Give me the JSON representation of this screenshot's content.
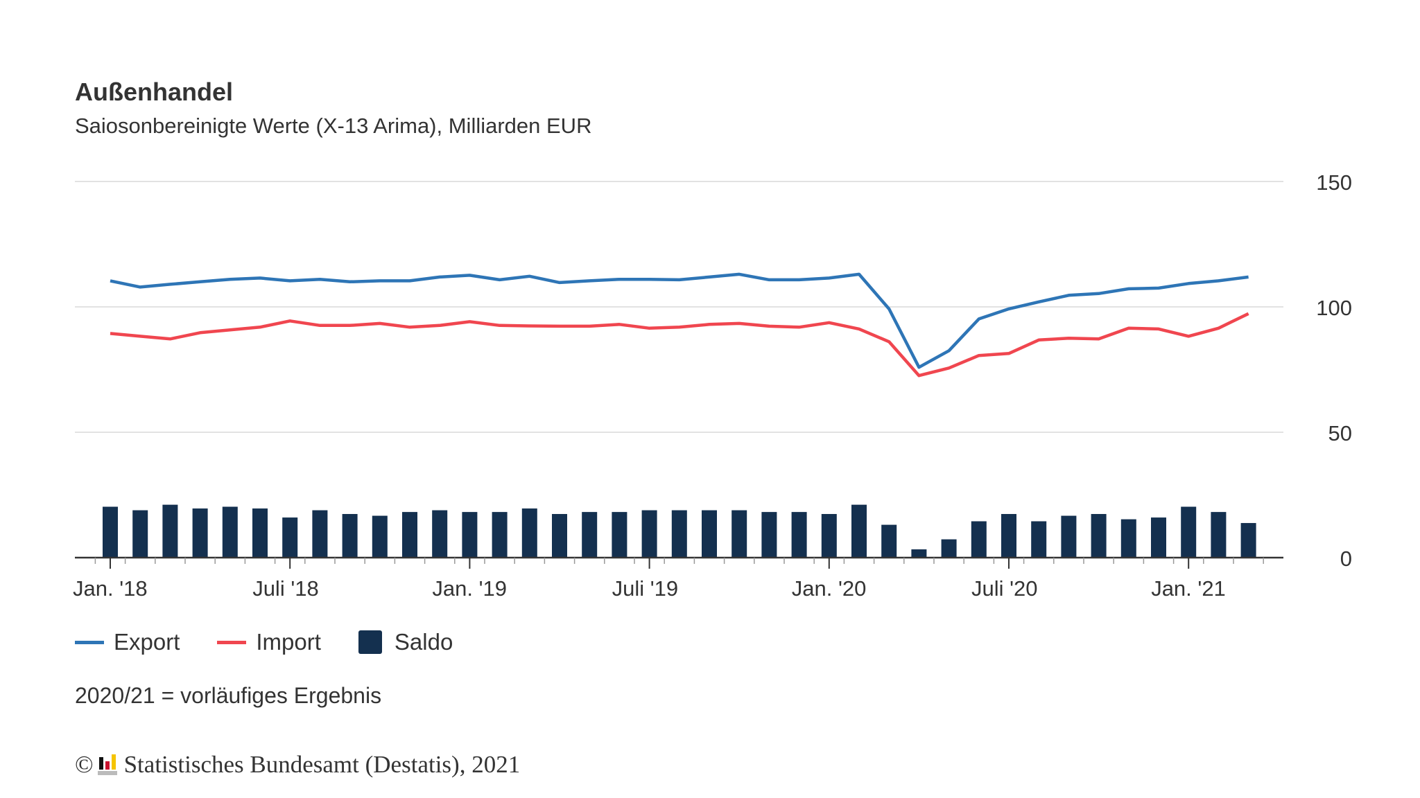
{
  "chart_data": {
    "type": "line+bar",
    "title": "Außenhandel",
    "subtitle": "Saiosonbereinigte Werte (X-13 Arima), Milliarden EUR",
    "ylim": [
      0,
      150
    ],
    "yticks": [
      "150",
      "100",
      "50",
      "0"
    ],
    "ytick_values": [
      150,
      100,
      50,
      0
    ],
    "grid": true,
    "legend_position": "bottom-left",
    "x_start": "Jan. 2018",
    "x_end": "Mär. 2021",
    "xtick_labels": [
      {
        "label": "Jan. '18",
        "month_index": 0
      },
      {
        "label": "Juli '18",
        "month_index": 6
      },
      {
        "label": "Jan. '19",
        "month_index": 12
      },
      {
        "label": "Juli '19",
        "month_index": 18
      },
      {
        "label": "Jan. '20",
        "month_index": 24
      },
      {
        "label": "Juli '20",
        "month_index": 30
      },
      {
        "label": "Jan. '21",
        "month_index": 36
      }
    ],
    "series": [
      {
        "name": "Export",
        "type": "line",
        "color": "#2e75b6",
        "values": [
          110.4,
          107.9,
          109,
          110,
          111,
          111.5,
          110.4,
          111,
          110,
          110.4,
          110.4,
          111.9,
          112.6,
          110.8,
          112.2,
          109.7,
          110.4,
          111,
          111,
          110.8,
          111.9,
          113,
          110.8,
          110.8,
          111.5,
          113,
          99.2,
          75.9,
          82.5,
          95.2,
          99.2,
          102,
          104.6,
          105.3,
          107.2,
          107.5,
          109.3,
          110.4,
          111.9
        ]
      },
      {
        "name": "Import",
        "type": "line",
        "color": "#f0464f",
        "values": [
          89.4,
          88.3,
          87.2,
          89.7,
          90.8,
          91.9,
          94.4,
          92.6,
          92.6,
          93.4,
          91.9,
          92.6,
          94.1,
          92.6,
          92.4,
          92.3,
          92.3,
          93,
          91.5,
          91.9,
          93,
          93.4,
          92.3,
          91.9,
          93.7,
          91.2,
          86.1,
          72.6,
          75.6,
          80.6,
          81.4,
          86.8,
          87.5,
          87.2,
          91.5,
          91.2,
          88.3,
          91.5,
          97.3
        ]
      },
      {
        "name": "Saldo",
        "type": "bar",
        "color": "#14304f",
        "values": [
          20.3,
          18.9,
          21.1,
          19.6,
          20.3,
          19.6,
          16,
          18.9,
          17.4,
          16.7,
          18.2,
          18.9,
          18.2,
          18.2,
          19.6,
          17.4,
          18.2,
          18.2,
          18.9,
          18.9,
          18.9,
          18.9,
          18.2,
          18.2,
          17.4,
          21.1,
          13.1,
          3.3,
          7.3,
          14.5,
          17.4,
          14.5,
          16.7,
          17.4,
          15.3,
          16,
          20.3,
          18.2,
          13.8
        ]
      }
    ]
  },
  "note": "2020/21 = vorläufiges Ergebnis",
  "footer": {
    "copyright": "©",
    "source": "Statistisches Bundesamt (Destatis), 2021",
    "logo_text": "Destatis logo"
  }
}
